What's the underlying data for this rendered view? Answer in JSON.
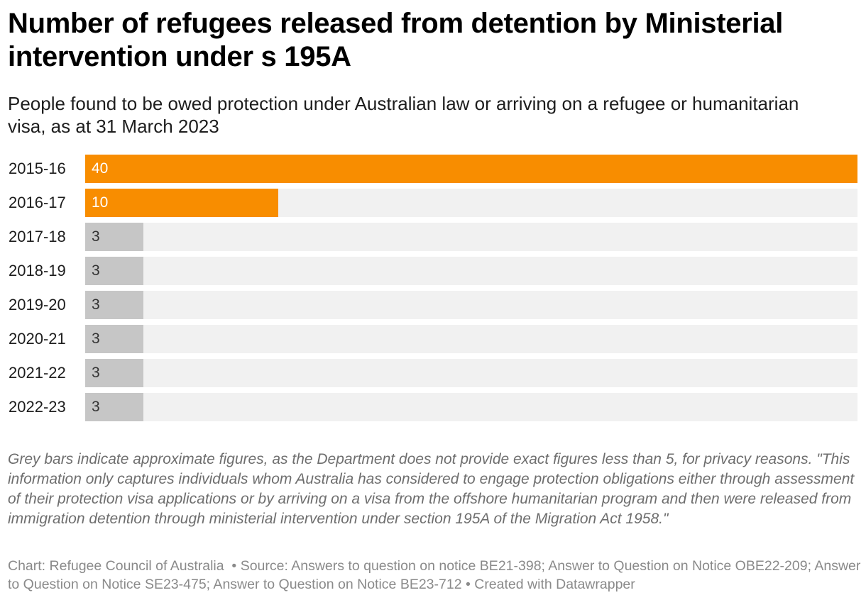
{
  "header": {
    "title": "Number of refugees released from detention by Ministerial intervention under s 195A",
    "subtitle": "People found to be owed protection under Australian law or arriving on a refugee or humanitarian visa, as at 31 March 2023"
  },
  "colors": {
    "exact": "#f88d00",
    "approximate": "#c6c6c6",
    "track": "#f1f1f1",
    "label_on_exact": "#ffffff",
    "label_on_approximate": "#333333"
  },
  "chart_data": {
    "type": "bar",
    "orientation": "horizontal",
    "title": "Number of refugees released from detention by Ministerial intervention under s 195A",
    "xlabel": "",
    "ylabel": "",
    "xlim": [
      0,
      40
    ],
    "grid": false,
    "categories": [
      "2015-16",
      "2016-17",
      "2017-18",
      "2018-19",
      "2019-20",
      "2020-21",
      "2021-22",
      "2022-23"
    ],
    "values": [
      40,
      10,
      3,
      3,
      3,
      3,
      3,
      3
    ],
    "value_labels": [
      "40",
      "10",
      "3",
      "3",
      "3",
      "3",
      "3",
      "3"
    ],
    "approximate": [
      false,
      false,
      true,
      true,
      true,
      true,
      true,
      true
    ]
  },
  "notes": "Grey bars indicate approximate figures, as the Department does not provide exact figures less than 5, for privacy reasons. \"This information only captures individuals whom Australia has considered to engage protection obligations either through assessment of their protection visa applications or by arriving on a visa from the offshore humanitarian program and then were released from immigration detention through ministerial intervention under section 195A of the Migration Act 1958.\"",
  "footer": {
    "credit": "Chart: Refugee Council of Australia",
    "source": "Source: Answers to question on notice BE21-398; Answer to Question on Notice OBE22-209; Answer to Question on Notice SE23-475; Answer to Question on Notice BE23-712",
    "created": "Created with Datawrapper"
  }
}
